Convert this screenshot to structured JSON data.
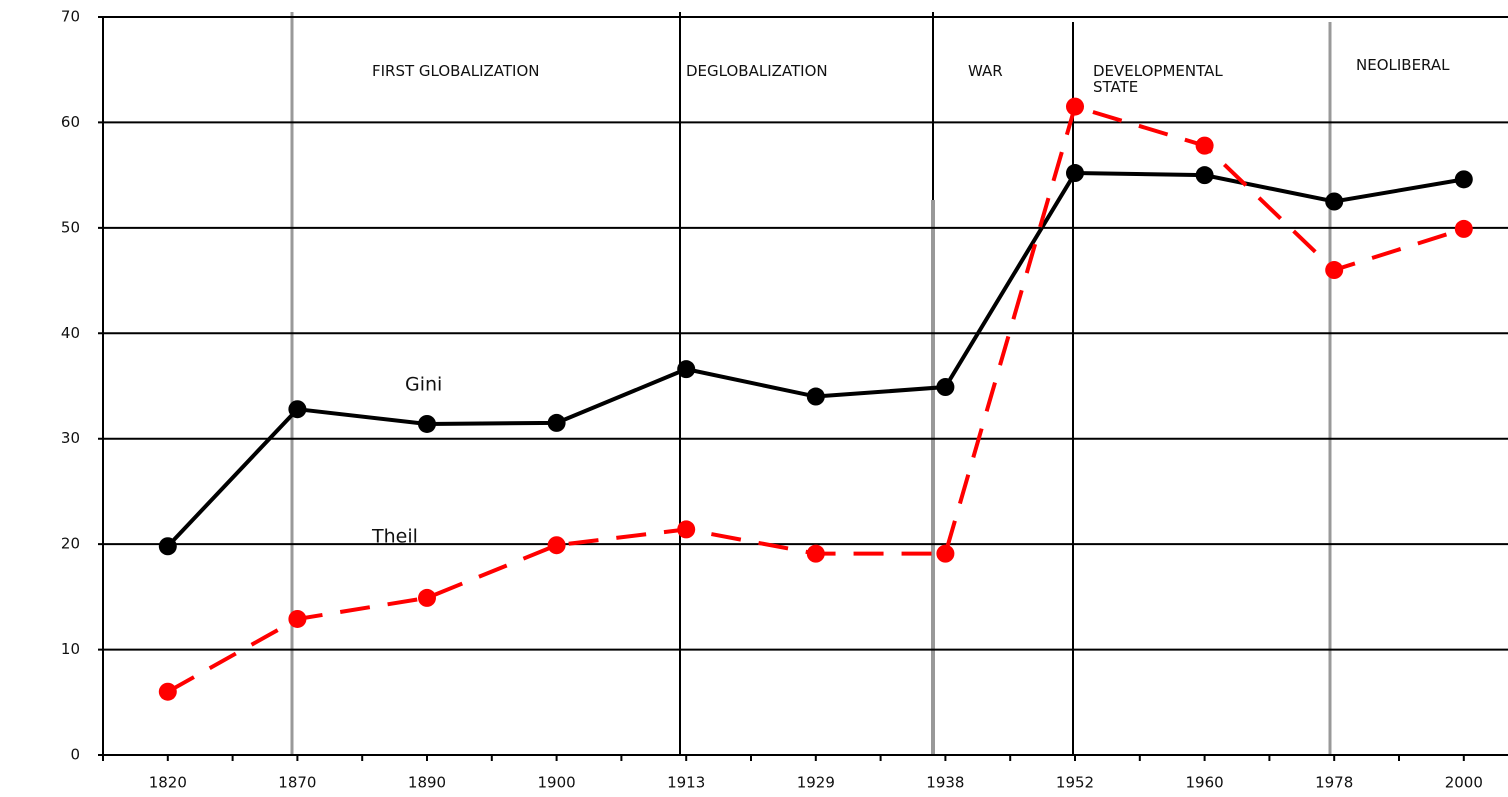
{
  "chart_data": {
    "type": "line",
    "categories": [
      "1820",
      "1870",
      "1890",
      "1900",
      "1913",
      "1929",
      "1938",
      "1952",
      "1960",
      "1978",
      "2000"
    ],
    "series": [
      {
        "name": "Gini",
        "color": "#000000",
        "values": [
          19.8,
          32.8,
          31.4,
          31.5,
          36.6,
          34.0,
          34.9,
          55.2,
          55.0,
          52.5,
          54.6
        ]
      },
      {
        "name": "Theil",
        "color": "#ff0000",
        "values": [
          6.0,
          12.9,
          14.9,
          19.9,
          21.4,
          19.1,
          19.1,
          61.5,
          57.8,
          46.0,
          49.9
        ]
      }
    ],
    "annotations": [
      "FIRST GLOBALIZATION",
      "DEGLOBALIZATION",
      "WAR",
      "DEVELOPMENTAL STATE",
      "NEOLIBERAL"
    ],
    "ylim": [
      0,
      70
    ],
    "yticks": [
      0,
      10,
      20,
      30,
      40,
      50,
      60,
      70
    ],
    "grid": true
  }
}
